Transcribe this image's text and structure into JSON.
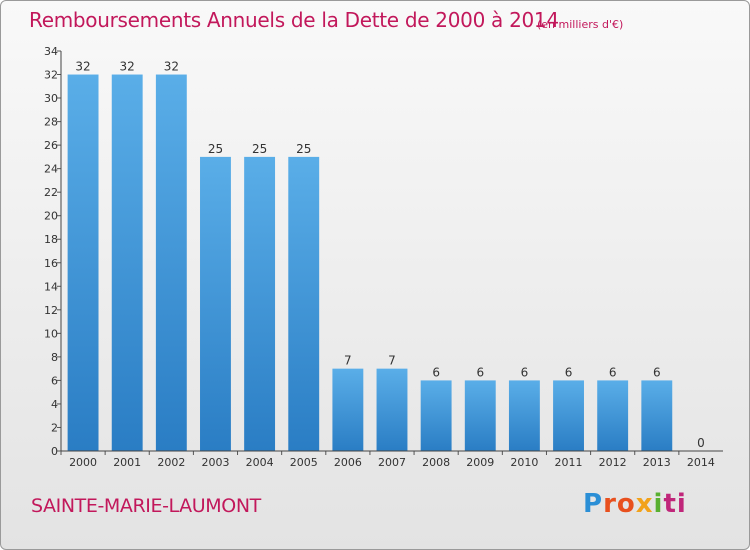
{
  "title": "Remboursements Annuels de la Dette de 2000 à 2014",
  "unit_note": "(en milliers d'€)",
  "commune": "SAINTE-MARIE-LAUMONT",
  "logo": {
    "text": "Proxiti",
    "parts": [
      "P",
      "ro",
      "x",
      "i",
      "ti"
    ]
  },
  "colors": {
    "title": "#c2185b",
    "bar_top": "#5aaee8",
    "bar_bottom": "#2a7dc4"
  },
  "chart_data": {
    "type": "bar",
    "title": "Remboursements Annuels de la Dette de 2000 à 2014",
    "xlabel": "",
    "ylabel": "",
    "categories": [
      "2000",
      "2001",
      "2002",
      "2003",
      "2004",
      "2005",
      "2006",
      "2007",
      "2008",
      "2009",
      "2010",
      "2011",
      "2012",
      "2013",
      "2014"
    ],
    "values": [
      32,
      32,
      32,
      25,
      25,
      25,
      7,
      7,
      6,
      6,
      6,
      6,
      6,
      6,
      0
    ],
    "ylim": [
      0,
      34
    ],
    "yticks": [
      0,
      2,
      4,
      6,
      8,
      10,
      12,
      14,
      16,
      18,
      20,
      22,
      24,
      26,
      28,
      30,
      32,
      34
    ],
    "grid": false,
    "legend": "none"
  }
}
